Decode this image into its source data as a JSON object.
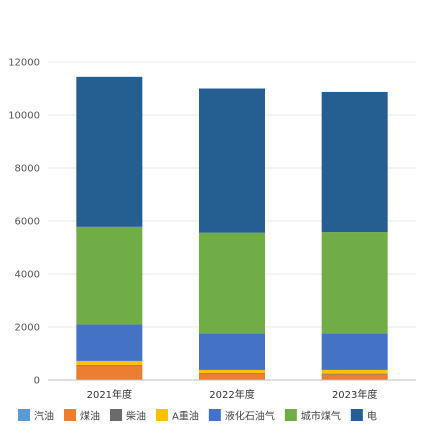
{
  "chart_data": {
    "type": "bar",
    "stacked": true,
    "categories": [
      "2021年度",
      "2022年度",
      "2023年度"
    ],
    "ylim": [
      0,
      12000
    ],
    "yticks": [
      0,
      2000,
      4000,
      6000,
      8000,
      10000,
      12000
    ],
    "grid": true,
    "legend": "bottom",
    "series": [
      {
        "name": "汽油",
        "color": "#5b9bd5",
        "values": [
          0,
          0,
          0
        ]
      },
      {
        "name": "煤油",
        "color": "#ed7d31",
        "values": [
          540,
          240,
          210
        ]
      },
      {
        "name": "柴油",
        "color": "#6b6b6b",
        "values": [
          30,
          30,
          30
        ]
      },
      {
        "name": "A重油",
        "color": "#ffc000",
        "values": [
          150,
          110,
          140
        ]
      },
      {
        "name": "液化石油气",
        "color": "#4472c4",
        "values": [
          1380,
          1380,
          1380
        ]
      },
      {
        "name": "城市煤气",
        "color": "#70ad47",
        "values": [
          3680,
          3800,
          3820
        ]
      },
      {
        "name": "电",
        "color": "#255e91",
        "values": [
          5660,
          5440,
          5290
        ]
      }
    ]
  }
}
